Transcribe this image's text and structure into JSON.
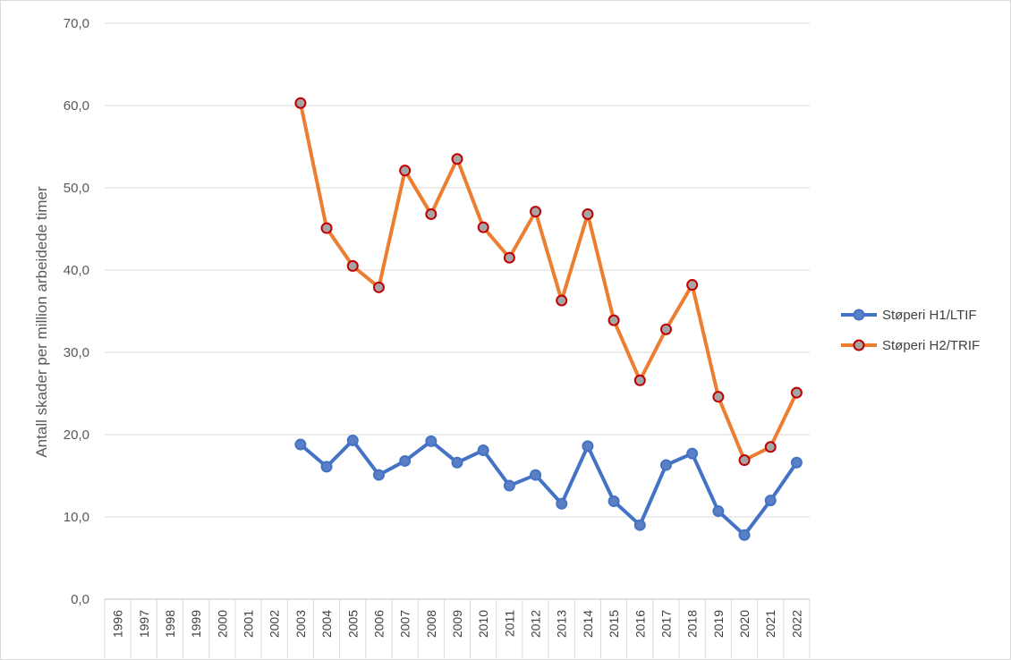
{
  "chart_data": {
    "type": "line",
    "title": "",
    "xlabel": "",
    "ylabel": "Antall skader per million arbeidede timer",
    "ylim": [
      0,
      70
    ],
    "yticks": [
      0,
      10,
      20,
      30,
      40,
      50,
      60,
      70
    ],
    "ytick_labels": [
      "0,0",
      "10,0",
      "20,0",
      "30,0",
      "40,0",
      "50,0",
      "60,0",
      "70,0"
    ],
    "grid": "horizontal",
    "legend_position": "right",
    "categories": [
      "1996",
      "1997",
      "1998",
      "1999",
      "2000",
      "2001",
      "2002",
      "2003",
      "2004",
      "2005",
      "2006",
      "2007",
      "2008",
      "2009",
      "2010",
      "2011",
      "2012",
      "2013",
      "2014",
      "2015",
      "2016",
      "2017",
      "2018",
      "2019",
      "2020",
      "2021",
      "2022"
    ],
    "series": [
      {
        "name": "Støperi H1/LTIF",
        "color": "#4472c4",
        "marker_fill": "#5b7fc4",
        "marker_stroke": "#4472c4",
        "values": [
          null,
          null,
          null,
          null,
          null,
          null,
          null,
          18.8,
          16.1,
          19.3,
          15.1,
          16.8,
          19.2,
          16.6,
          18.1,
          13.8,
          15.1,
          11.6,
          18.6,
          11.9,
          9.0,
          16.3,
          17.7,
          10.7,
          7.8,
          12.0,
          16.6
        ]
      },
      {
        "name": "Støperi H2/TRIF",
        "color": "#ed7d31",
        "marker_fill": "#a5a5a5",
        "marker_stroke": "#c00000",
        "values": [
          null,
          null,
          null,
          null,
          null,
          null,
          null,
          60.3,
          45.1,
          40.5,
          37.9,
          52.1,
          46.8,
          53.5,
          45.2,
          41.5,
          47.1,
          36.3,
          46.8,
          33.9,
          26.6,
          32.8,
          38.2,
          24.6,
          16.9,
          18.5,
          25.1
        ]
      }
    ]
  }
}
